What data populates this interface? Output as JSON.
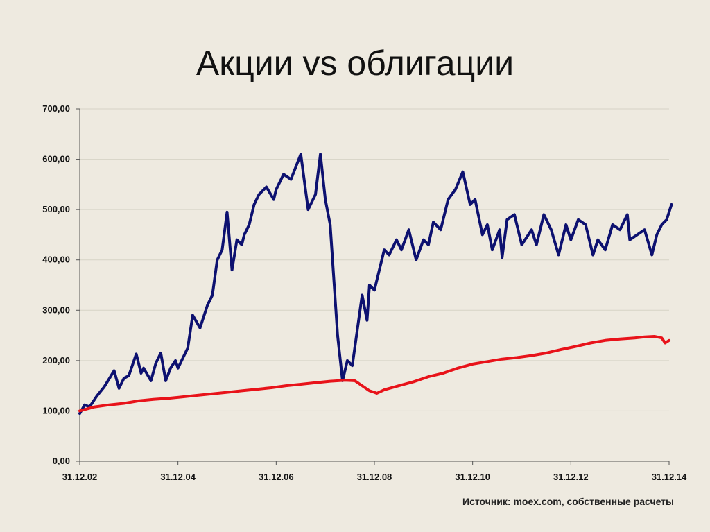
{
  "slide": {
    "title": "Акции vs облигации",
    "source": "Источник: moex.com, собственные расчеты"
  },
  "colors": {
    "background": "#eeeae0",
    "stocks": "#0d1170",
    "bonds": "#e8131a",
    "grid": "#d6d3c6",
    "axis": "#555555"
  },
  "chart_data": {
    "type": "line",
    "title": "",
    "xlabel": "",
    "ylabel": "",
    "ylim": [
      0,
      700
    ],
    "yticks": [
      0,
      100,
      200,
      300,
      400,
      500,
      600,
      700
    ],
    "ytick_labels": [
      "0,00",
      "100,00",
      "200,00",
      "300,00",
      "400,00",
      "500,00",
      "600,00",
      "700,00"
    ],
    "xlim": [
      2003.0,
      2015.0
    ],
    "xticks": [
      2003.0,
      2005.0,
      2007.0,
      2009.0,
      2011.0,
      2013.0,
      2015.0
    ],
    "xtick_labels": [
      "31.12.02",
      "31.12.04",
      "31.12.06",
      "31.12.08",
      "31.12.10",
      "31.12.12",
      "31.12.14"
    ],
    "grid": "horizontal",
    "legend": "none",
    "series": [
      {
        "color": "#0d1170",
        "x": [
          2003.0,
          2003.1,
          2003.2,
          2003.35,
          2003.5,
          2003.7,
          2003.8,
          2003.9,
          2004.0,
          2004.15,
          2004.25,
          2004.3,
          2004.45,
          2004.55,
          2004.65,
          2004.75,
          2004.85,
          2004.95,
          2005.0,
          2005.1,
          2005.2,
          2005.3,
          2005.45,
          2005.6,
          2005.7,
          2005.8,
          2005.9,
          2006.0,
          2006.1,
          2006.2,
          2006.3,
          2006.35,
          2006.45,
          2006.55,
          2006.65,
          2006.8,
          2006.95,
          2007.0,
          2007.15,
          2007.3,
          2007.5,
          2007.65,
          2007.8,
          2007.9,
          2008.0,
          2008.1,
          2008.25,
          2008.35,
          2008.45,
          2008.55,
          2008.65,
          2008.75,
          2008.85,
          2008.9,
          2009.0,
          2009.1,
          2009.2,
          2009.3,
          2009.45,
          2009.55,
          2009.7,
          2009.85,
          2010.0,
          2010.1,
          2010.2,
          2010.35,
          2010.5,
          2010.65,
          2010.8,
          2010.95,
          2011.05,
          2011.2,
          2011.3,
          2011.4,
          2011.55,
          2011.6,
          2011.7,
          2011.85,
          2012.0,
          2012.2,
          2012.3,
          2012.45,
          2012.6,
          2012.75,
          2012.9,
          2013.0,
          2013.15,
          2013.3,
          2013.45,
          2013.55,
          2013.7,
          2013.85,
          2014.0,
          2014.15,
          2014.2,
          2014.35,
          2014.5,
          2014.65,
          2014.75,
          2014.85,
          2014.95,
          2015.05
        ],
        "y": [
          95,
          112,
          108,
          130,
          148,
          180,
          145,
          165,
          170,
          213,
          175,
          185,
          160,
          195,
          215,
          160,
          185,
          200,
          185,
          205,
          225,
          290,
          265,
          310,
          330,
          400,
          420,
          495,
          380,
          440,
          430,
          450,
          470,
          510,
          530,
          545,
          520,
          540,
          570,
          560,
          610,
          500,
          530,
          610,
          520,
          470,
          250,
          160,
          200,
          190,
          260,
          330,
          280,
          350,
          340,
          380,
          420,
          410,
          440,
          420,
          460,
          400,
          440,
          430,
          475,
          460,
          520,
          540,
          575,
          510,
          520,
          450,
          470,
          420,
          460,
          405,
          480,
          490,
          430,
          460,
          430,
          490,
          460,
          410,
          470,
          440,
          480,
          470,
          410,
          440,
          420,
          470,
          460,
          490,
          440,
          450,
          460,
          410,
          450,
          470,
          480,
          510
        ]
      },
      {
        "color": "#e8131a",
        "x": [
          2003.0,
          2003.3,
          2003.6,
          2003.9,
          2004.2,
          2004.5,
          2004.8,
          2005.1,
          2005.4,
          2005.7,
          2006.0,
          2006.3,
          2006.6,
          2006.9,
          2007.2,
          2007.5,
          2007.8,
          2008.1,
          2008.4,
          2008.6,
          2008.75,
          2008.9,
          2009.0,
          2009.05,
          2009.2,
          2009.5,
          2009.8,
          2010.1,
          2010.4,
          2010.7,
          2011.0,
          2011.3,
          2011.6,
          2011.9,
          2012.2,
          2012.5,
          2012.8,
          2013.1,
          2013.4,
          2013.7,
          2014.0,
          2014.3,
          2014.5,
          2014.7,
          2014.85,
          2014.92,
          2015.0
        ],
        "y": [
          100,
          108,
          112,
          115,
          120,
          123,
          125,
          128,
          131,
          134,
          137,
          140,
          143,
          146,
          150,
          153,
          156,
          159,
          161,
          160,
          150,
          140,
          137,
          135,
          142,
          150,
          158,
          168,
          175,
          185,
          193,
          198,
          203,
          206,
          210,
          215,
          222,
          228,
          235,
          240,
          243,
          245,
          247,
          248,
          245,
          235,
          240
        ]
      }
    ]
  }
}
